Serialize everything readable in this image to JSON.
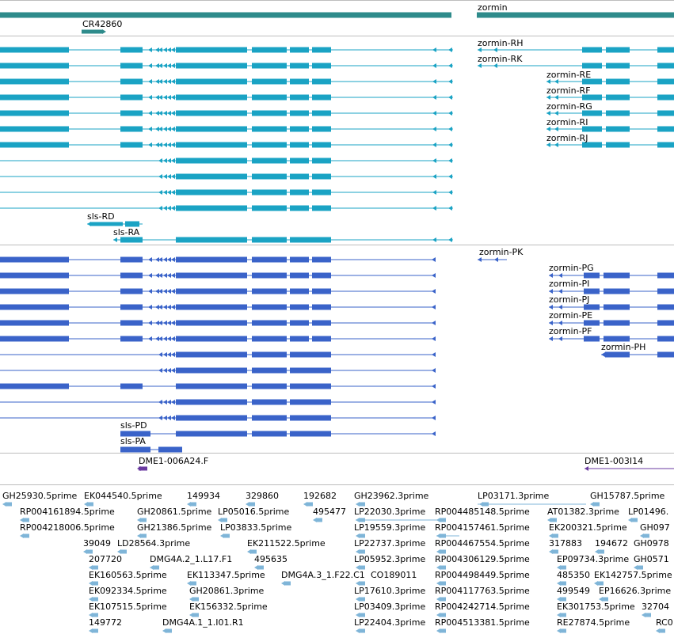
{
  "colors": {
    "gene_track": "#2e8b8b",
    "transcript_a": "#1aa3c4",
    "transcript_b": "#3a63c9",
    "clone": "#6a3aa0",
    "est": "#7fb5d8",
    "divider": "#bdbdbd"
  },
  "gene_labels": {
    "zormin": "zormin",
    "cr42860": "CR42860"
  },
  "transcripts_a": [
    "zormin-RH",
    "zormin-RK",
    "zormin-RE",
    "zormin-RF",
    "zormin-RG",
    "zormin-RI",
    "zormin-RJ",
    "sls-RD",
    "sls-RA"
  ],
  "transcripts_b": [
    "zormin-PK",
    "zormin-PG",
    "zormin-PI",
    "zormin-PJ",
    "zormin-PE",
    "zormin-PF",
    "zormin-PH",
    "sls-PD",
    "sls-PA"
  ],
  "clones": [
    "DME1-006A24.F",
    "DME1-003I14"
  ],
  "est_rows": [
    [
      "GH25930.5prime",
      "EK044540.5prime",
      "149934",
      "329860",
      "192682",
      "GH23962.3prime",
      "LP03171.3prime",
      "GH15787.5prime"
    ],
    [
      "RP004161894.5prime",
      "GH20861.5prime",
      "LP05016.5prime",
      "495477",
      "LP22030.3prime",
      "RP004485148.5prime",
      "AT01382.3prime",
      "LP01496."
    ],
    [
      "RP004218006.5prime",
      "GH21386.5prime",
      "LP03833.5prime",
      "LP19559.3prime",
      "RP004157461.5prime",
      "EK200321.5prime",
      "GH097"
    ],
    [
      "39049",
      "LD28564.3prime",
      "EK211522.5prime",
      "LP22737.3prime",
      "RP004467554.5prime",
      "317883",
      "194672",
      "GH0978"
    ],
    [
      "207720",
      "DMG4A.2_1.L17.F1",
      "495635",
      "LP05952.3prime",
      "RP004306129.5prime",
      "EP09734.3prime",
      "GH0571"
    ],
    [
      "EK160563.5prime",
      "EK113347.5prime",
      "DMG4A.3_1.F22.C1",
      "CO189011",
      "RP004498449.5prime",
      "485350",
      "EK142757.5prime"
    ],
    [
      "EK092334.5prime",
      "GH20861.3prime",
      "LP17610.3prime",
      "RP004117763.5prime",
      "499549",
      "EP16626.3prime"
    ],
    [
      "EK107515.5prime",
      "EK156332.5prime",
      "LP03409.3prime",
      "RP004242714.5prime",
      "EK301753.5prime",
      "32704"
    ],
    [
      "149772",
      "DMG4A.1_1.I01.R1",
      "LP22404.3prime",
      "RP004513381.5prime",
      "RE27874.5prime",
      "RC0"
    ]
  ]
}
